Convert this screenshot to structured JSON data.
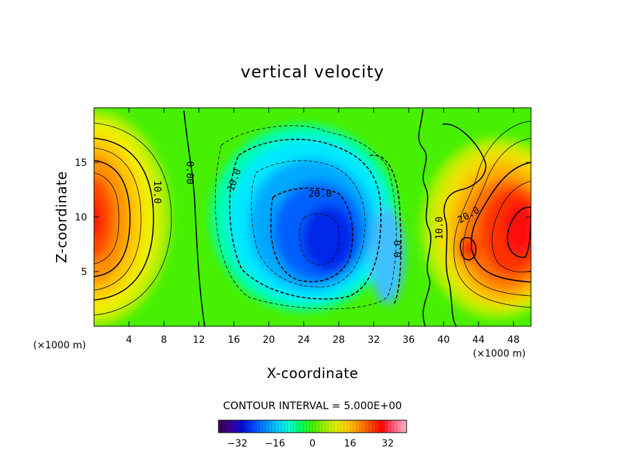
{
  "chart_data": {
    "type": "contour",
    "title": "vertical velocity",
    "xlabel": "X-coordinate",
    "ylabel": "Z-coordinate",
    "x_unit": "(×1000 m)",
    "y_unit": "(×1000 m)",
    "xlim": [
      0,
      50
    ],
    "ylim": [
      0,
      20
    ],
    "x_ticks": [
      "4",
      "8",
      "12",
      "16",
      "20",
      "24",
      "28",
      "32",
      "36",
      "40",
      "44",
      "48"
    ],
    "x_tick_values": [
      4,
      8,
      12,
      16,
      20,
      24,
      28,
      32,
      36,
      40,
      44,
      48
    ],
    "y_ticks": [
      "5",
      "10",
      "15"
    ],
    "y_tick_values": [
      5,
      10,
      15
    ],
    "contour_interval_text": "CONTOUR INTERVAL = 5.000E+00",
    "contour_interval": 5.0,
    "colorbar": {
      "range": [
        -40,
        40
      ],
      "tick_labels": [
        "−32",
        "−16",
        "0",
        "16",
        "32"
      ],
      "tick_values": [
        -32,
        -16,
        0,
        16,
        32
      ],
      "colors": [
        "#3a0055",
        "#3a00a0",
        "#0010d8",
        "#0050ff",
        "#0090ff",
        "#00d0ff",
        "#00ffd0",
        "#00ff60",
        "#40f000",
        "#a0f000",
        "#e0f000",
        "#ffd000",
        "#ff9000",
        "#ff4a00",
        "#ff0000",
        "#ff6080",
        "#ffb0c0"
      ]
    },
    "contour_labels": [
      "10.0",
      "0.00",
      "10.0",
      "20.0",
      "0.0",
      "10.0",
      "20.0"
    ],
    "features": [
      {
        "name": "updraft-left",
        "x": 0.0,
        "z": 10.0,
        "peak": 32
      },
      {
        "name": "downdraft-center",
        "x": 27.0,
        "z": 8.0,
        "peak": -25
      },
      {
        "name": "updraft-right",
        "x": 48.0,
        "z": 9.0,
        "peak": 34
      },
      {
        "name": "updraft-right-secondary",
        "x": 42.5,
        "z": 7.0,
        "peak": 30
      }
    ]
  }
}
